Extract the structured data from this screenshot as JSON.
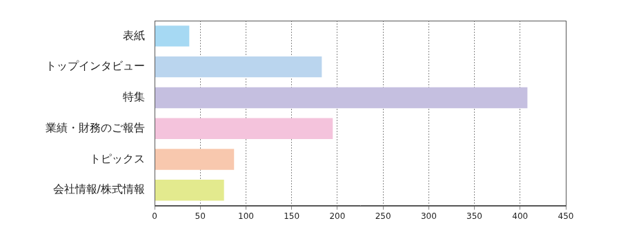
{
  "chart_data": {
    "type": "bar",
    "orientation": "horizontal",
    "categories": [
      "表紙",
      "トップインタビュー",
      "特集",
      "業績・財務のご報告",
      "トピックス",
      "会社情報/株式情報"
    ],
    "values": [
      38,
      183,
      408,
      195,
      87,
      76
    ],
    "colors": [
      "#a6d9f3",
      "#bad5ee",
      "#c5bfe0",
      "#f4c3dc",
      "#f8c8ae",
      "#e3ea8e"
    ],
    "xlim": [
      0,
      450
    ],
    "xticks": [
      0,
      50,
      100,
      150,
      200,
      250,
      300,
      350,
      400,
      450
    ],
    "grid": true
  }
}
